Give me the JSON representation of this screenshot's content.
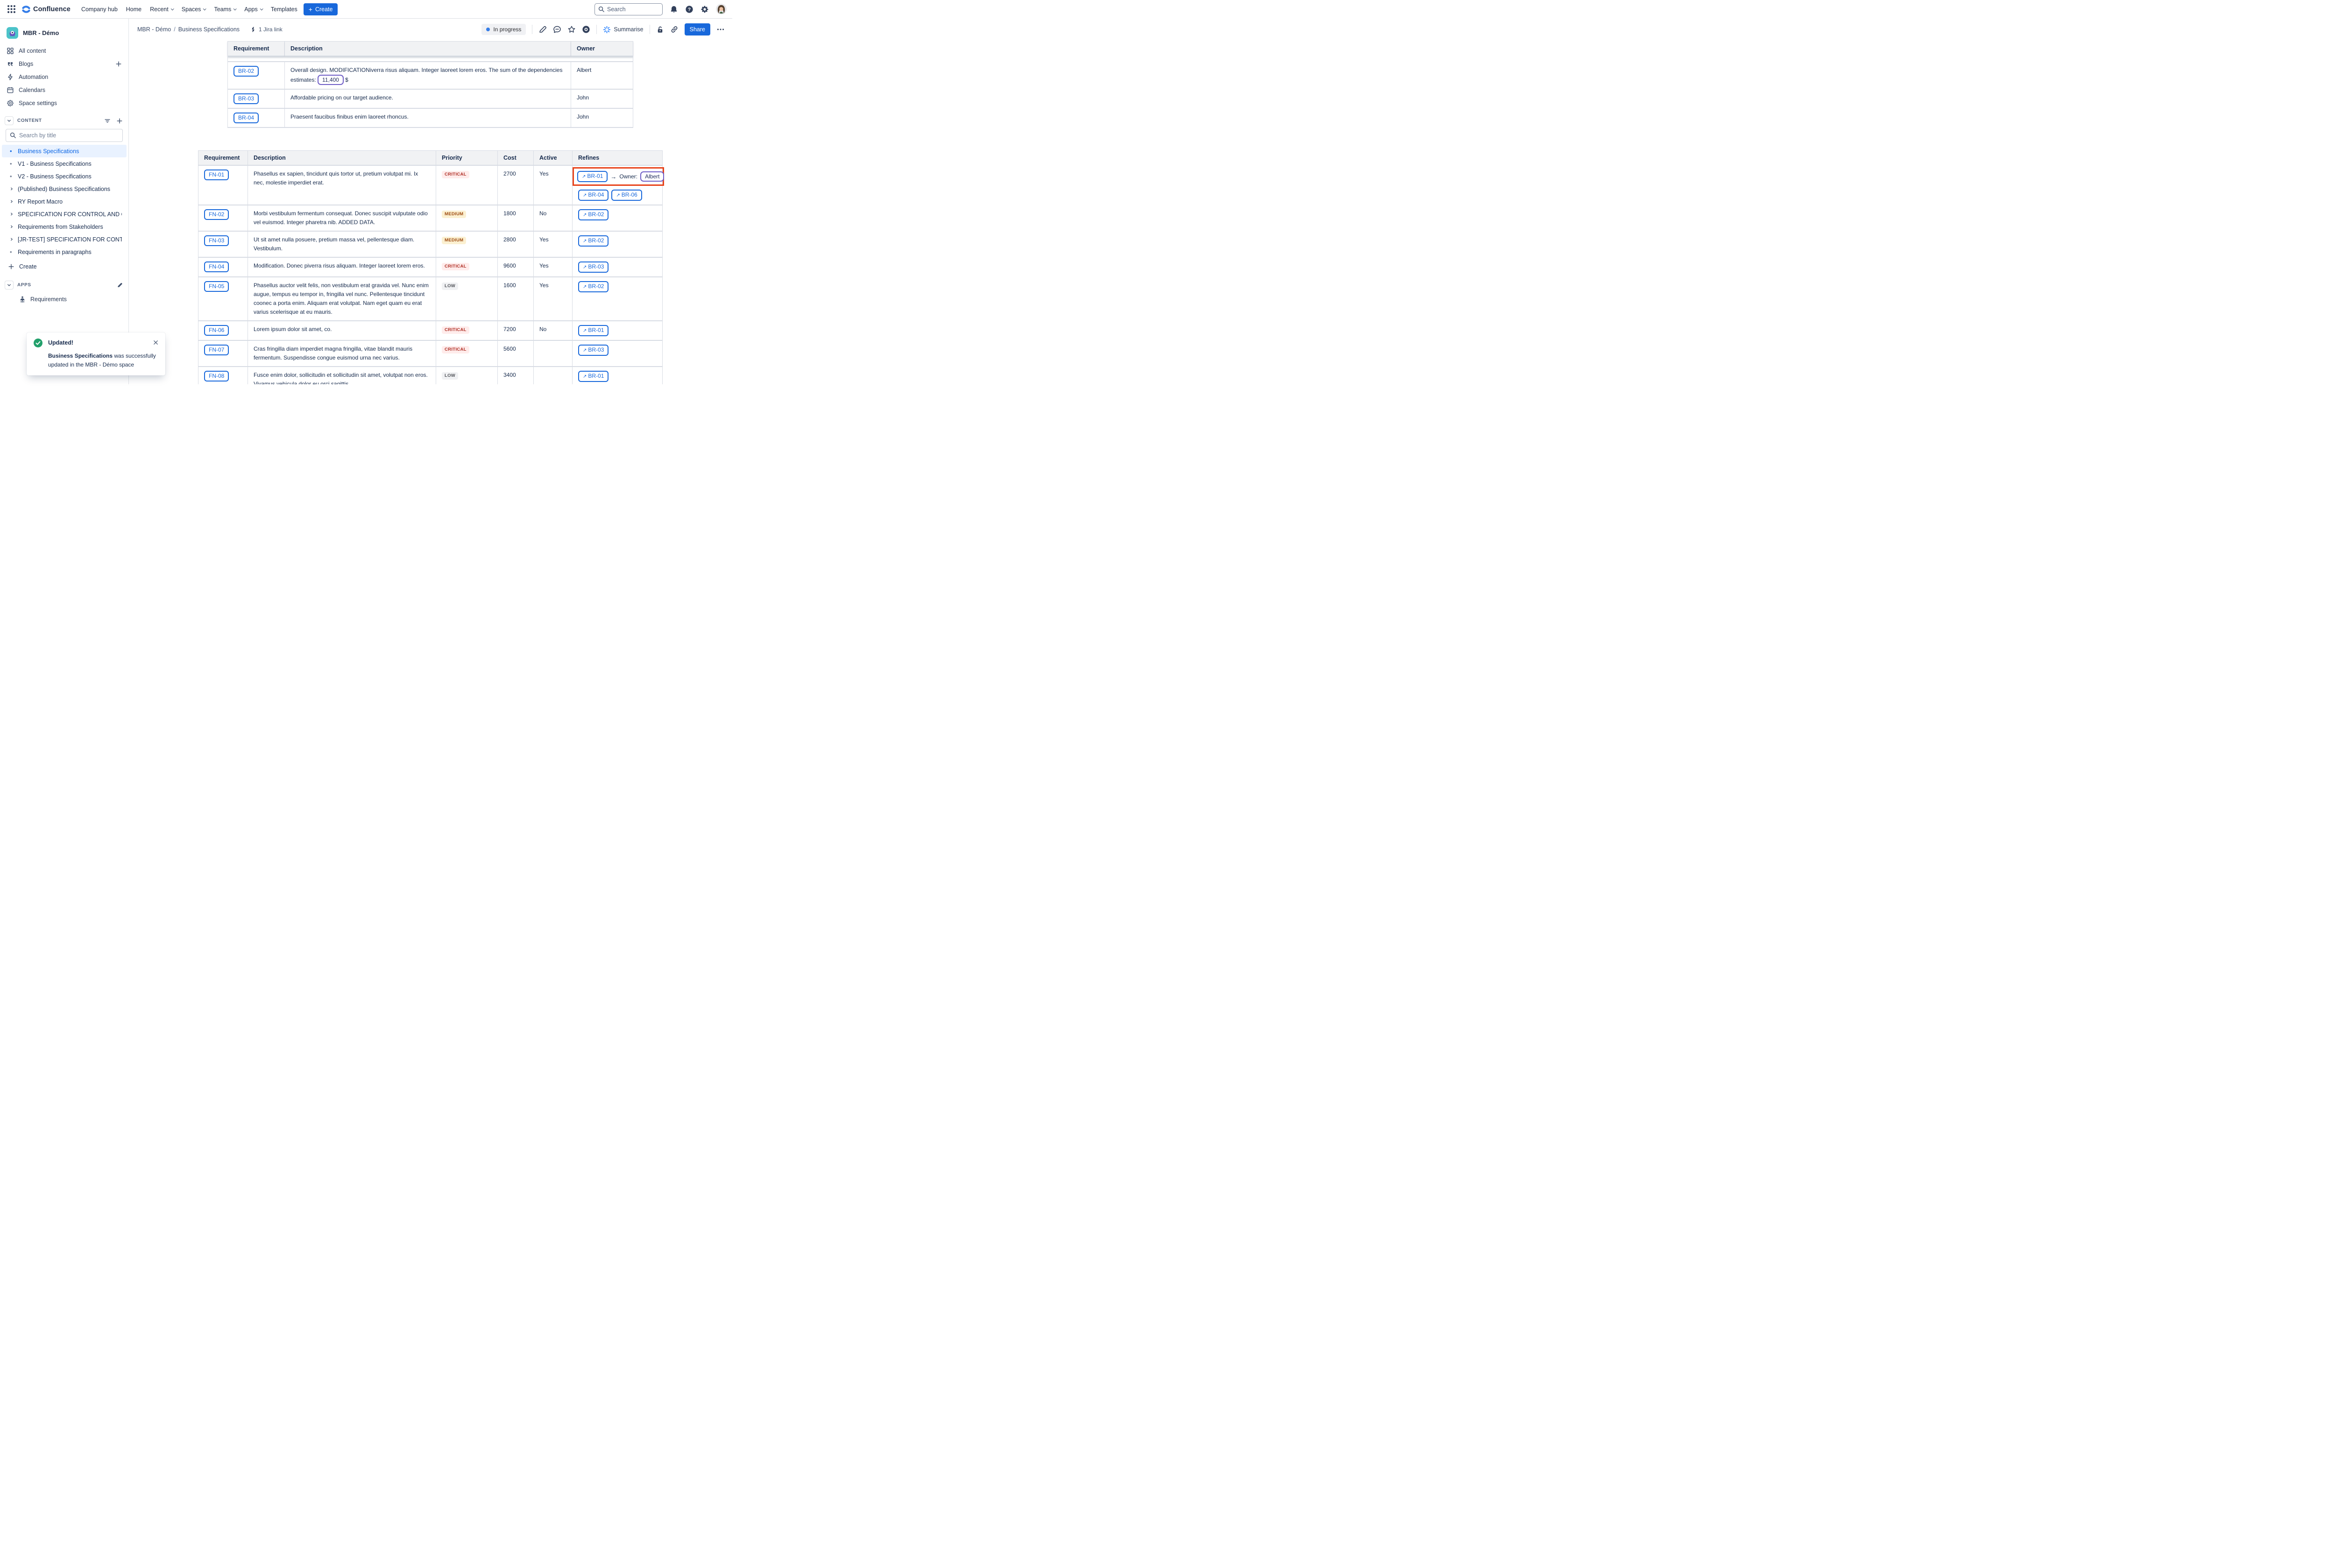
{
  "topnav": {
    "logo_text": "Confluence",
    "menu": [
      {
        "label": "Company hub",
        "dropdown": false
      },
      {
        "label": "Home",
        "dropdown": false
      },
      {
        "label": "Recent",
        "dropdown": true
      },
      {
        "label": "Spaces",
        "dropdown": true
      },
      {
        "label": "Teams",
        "dropdown": true
      },
      {
        "label": "Apps",
        "dropdown": true
      },
      {
        "label": "Templates",
        "dropdown": false
      }
    ],
    "create_label": "Create",
    "search_placeholder": "Search"
  },
  "sidebar": {
    "space_name": "MBR - Démo",
    "nav": [
      {
        "label": "All content",
        "icon": "all-content"
      },
      {
        "label": "Blogs",
        "icon": "blogs",
        "trailing_add": true
      },
      {
        "label": "Automation",
        "icon": "automation"
      },
      {
        "label": "Calendars",
        "icon": "calendars"
      },
      {
        "label": "Space settings",
        "icon": "space-settings"
      }
    ],
    "content_section": "CONTENT",
    "search_placeholder": "Search by title",
    "tree": [
      {
        "label": "Business Specifications",
        "marker": "dot",
        "selected": true
      },
      {
        "label": "V1 - Business Specifications",
        "marker": "dot"
      },
      {
        "label": "V2 - Business Specifications",
        "marker": "dot"
      },
      {
        "label": "(Published) Business Specifications",
        "marker": "chevron"
      },
      {
        "label": "RY Report Macro",
        "marker": "chevron"
      },
      {
        "label": "SPECIFICATION FOR CONTROL AND QUALIF...",
        "marker": "chevron"
      },
      {
        "label": "Requirements from Stakeholders",
        "marker": "chevron"
      },
      {
        "label": "[JR-TEST] SPECIFICATION FOR CONTROL A...",
        "marker": "chevron"
      },
      {
        "label": "Requirements in paragraphs",
        "marker": "dot"
      }
    ],
    "create_label": "Create",
    "apps_section": "APPS",
    "apps": [
      {
        "label": "Requirements",
        "icon": "requirements-app"
      }
    ]
  },
  "page_header": {
    "breadcrumb": [
      "MBR - Démo",
      "Business Specifications"
    ],
    "jira_link": "1 Jira link",
    "status": "In progress",
    "summarise_label": "Summarise",
    "share_label": "Share"
  },
  "requirements_table": {
    "headers": [
      "Requirement",
      "Description",
      "Owner"
    ],
    "rows": [
      {
        "id": "BR-02",
        "description_before": "Overall design. MODIFICATIONiverra risus aliquam. Integer laoreet lorem eros. The sum of the dependencies estimates:",
        "chip": "11,400",
        "description_after": "$",
        "owner": "Albert"
      },
      {
        "id": "BR-03",
        "description": "Affordable pricing on our target audience.",
        "owner": "John"
      },
      {
        "id": "BR-04",
        "description": "Praesent faucibus finibus enim laoreet rhoncus.",
        "owner": "John"
      }
    ]
  },
  "functional_table": {
    "headers": [
      "Requirement",
      "Description",
      "Priority",
      "Cost",
      "Active",
      "Refines"
    ],
    "rows": [
      {
        "id": "FN-01",
        "description": "Phasellus ex sapien, tincidunt quis tortor ut, pretium volutpat mi. Ix nec, molestie imperdiet erat.",
        "priority": "CRITICAL",
        "cost": "2700",
        "active": "Yes",
        "refines_highlighted": {
          "id": "BR-01",
          "arrow": "→",
          "owner_label": "Owner:",
          "owner": "Albert"
        },
        "refines": [
          "BR-04",
          "BR-06"
        ]
      },
      {
        "id": "FN-02",
        "description": "Morbi vestibulum fermentum consequat. Donec suscipit vulputate odio vel euismod. Integer pharetra nib. ADDED DATA.",
        "priority": "MEDIUM",
        "cost": "1800",
        "active": "No",
        "refines": [
          "BR-02"
        ]
      },
      {
        "id": "FN-03",
        "description": "Ut sit amet nulla posuere, pretium massa vel, pellentesque diam. Vestibulum.",
        "priority": "MEDIUM",
        "cost": "2800",
        "active": "Yes",
        "refines": [
          "BR-02"
        ]
      },
      {
        "id": "FN-04",
        "description": "Modification. Donec piverra risus aliquam. Integer laoreet lorem eros.",
        "priority": "CRITICAL",
        "cost": "9600",
        "active": "Yes",
        "refines": [
          "BR-03"
        ]
      },
      {
        "id": "FN-05",
        "description": "Phasellus auctor velit felis, non vestibulum erat gravida vel. Nunc enim augue, tempus eu tempor in, fringilla vel nunc. Pellentesque tincidunt coonec a porta enim. Aliquam erat volutpat. Nam eget quam eu erat varius scelerisque at eu mauris.",
        "priority": "LOW",
        "cost": "1600",
        "active": "Yes",
        "refines": [
          "BR-02"
        ]
      },
      {
        "id": "FN-06",
        "description": "Lorem ipsum dolor sit amet, co.",
        "priority": "CRITICAL",
        "cost": "7200",
        "active": "No",
        "refines": [
          "BR-01"
        ]
      },
      {
        "id": "FN-07",
        "description": "Cras fringilla diam imperdiet magna fringilla, vitae blandit mauris fermentum. Suspendisse congue euismod urna nec varius.",
        "priority": "CRITICAL",
        "cost": "5600",
        "active": "",
        "refines": [
          "BR-03"
        ]
      },
      {
        "id": "FN-08",
        "description": "Fusce enim dolor, sollicitudin et sollicitudin sit amet, volutpat non eros. Vivamus vehicula dolor eu orci sagittis,",
        "priority": "LOW",
        "cost": "3400",
        "active": "",
        "refines": [
          "BR-01"
        ]
      }
    ],
    "partial_next_row": true
  },
  "toast": {
    "title": "Updated!",
    "message_bold": "Business Specifications",
    "message_rest": " was successfully updated in the MBR - Démo space"
  },
  "colors": {
    "accent_blue": "#1868DB",
    "highlight_orange": "#E8431A",
    "status_dot_blue": "#357DE8",
    "success_green": "#22A06B",
    "chip_purple": "#6E5DC6"
  }
}
